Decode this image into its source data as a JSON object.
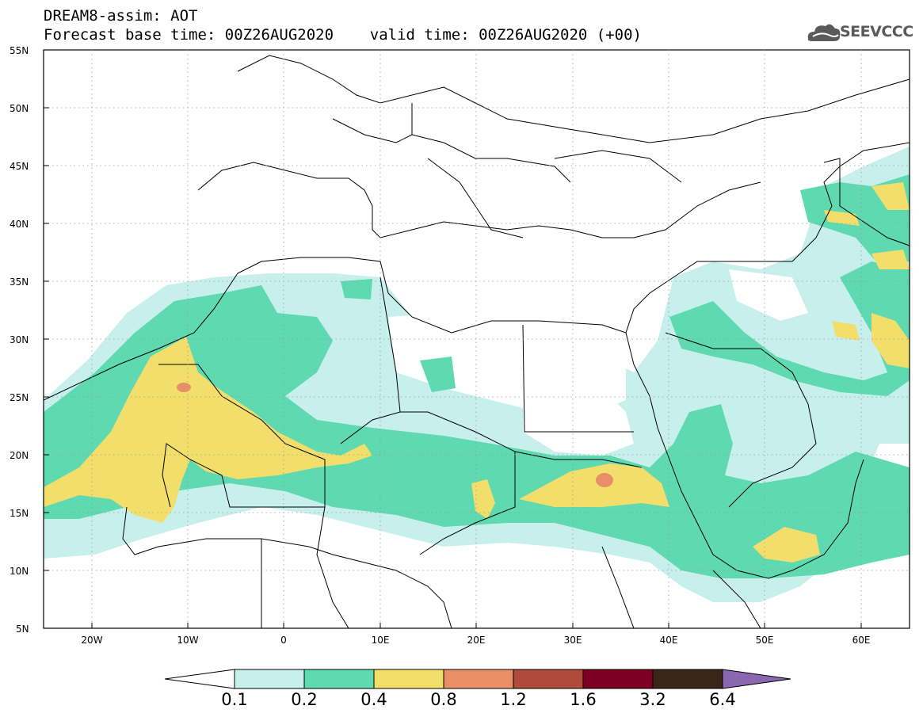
{
  "title": {
    "line1": "DREAM8-assim: AOT",
    "line2": "Forecast base time: 00Z26AUG2020    valid time: 00Z26AUG2020 (+00)"
  },
  "logo": {
    "text": "SEEVCCC",
    "icon": "cloud-logo-icon"
  },
  "map": {
    "lat_labels": [
      "55N",
      "50N",
      "45N",
      "40N",
      "35N",
      "30N",
      "25N",
      "20N",
      "15N",
      "10N",
      "5N"
    ],
    "lon_labels": [
      "20W",
      "10W",
      "0",
      "10E",
      "20E",
      "30E",
      "40E",
      "50E",
      "60E"
    ],
    "extent": {
      "lon": [
        -25,
        65
      ],
      "lat": [
        5,
        55
      ]
    },
    "colors": {
      "c01": "#c7f0ec",
      "c02": "#5ed9b0",
      "c04": "#f2df6b",
      "c08": "#e98f67"
    }
  },
  "colorbar": {
    "labels": [
      "0.1",
      "0.2",
      "0.4",
      "0.8",
      "1.2",
      "1.6",
      "3.2",
      "6.4"
    ],
    "colors": [
      "#ffffff",
      "#c7f0ec",
      "#5ed9b0",
      "#f2df6b",
      "#e98f67",
      "#b04a3a",
      "#7d0022",
      "#3a2518",
      "#8a67b0"
    ]
  }
}
